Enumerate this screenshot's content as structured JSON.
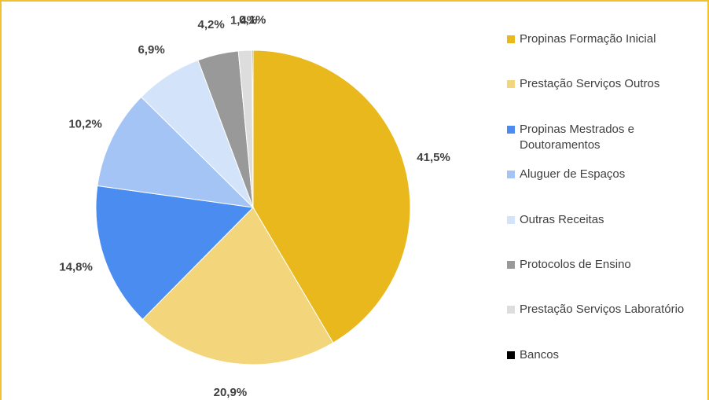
{
  "chart_data": {
    "type": "pie",
    "categories": [
      "Propinas Formação Inicial",
      "Prestação Serviços Outros",
      "Propinas Mestrados e Doutoramentos",
      "Aluguer de Espaços",
      "Outras Receitas",
      "Protocolos de Ensino",
      "Prestação Serviços Laboratório",
      "Bancos"
    ],
    "values": [
      41.5,
      20.9,
      14.8,
      10.2,
      6.9,
      4.2,
      1.4,
      0.1
    ],
    "value_labels": [
      "41,5%",
      "20,9%",
      "14,8%",
      "10,2%",
      "6,9%",
      "4,2%",
      "1,4%",
      "0,1%"
    ],
    "colors": [
      "#e9b81c",
      "#f3d67c",
      "#4a8cf0",
      "#a4c4f6",
      "#d3e3fa",
      "#999999",
      "#dddddd",
      "#000000"
    ],
    "legend": "right"
  }
}
